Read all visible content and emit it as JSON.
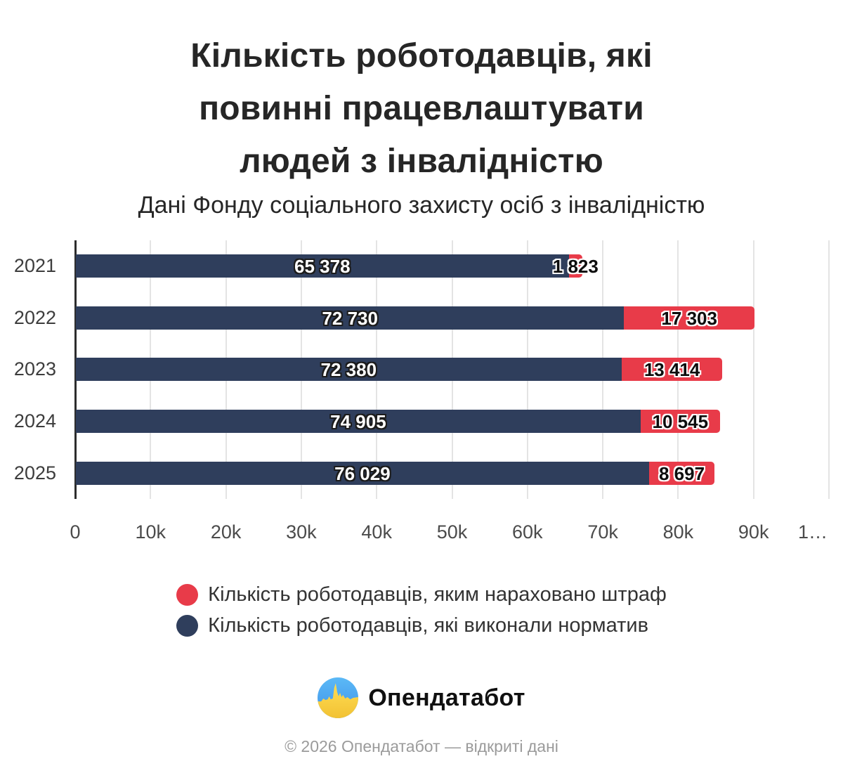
{
  "title": {
    "lines": [
      "Кількість роботодавців, які",
      "повинні працевлаштувати",
      "людей з інвалідністю"
    ],
    "subtitle": "Дані Фонду соціального захисту осіб з інвалідністю"
  },
  "chart_data": {
    "type": "bar",
    "orientation": "horizontal",
    "stacked": true,
    "categories": [
      "2021",
      "2022",
      "2023",
      "2024",
      "2025"
    ],
    "series": [
      {
        "name": "Кількість роботодавців, які виконали норматив",
        "color": "#2F3E5C",
        "values": [
          65378,
          72730,
          72380,
          74905,
          76029
        ],
        "labels": [
          "65 378",
          "72 730",
          "72 380",
          "74 905",
          "76 029"
        ]
      },
      {
        "name": "Кількість роботодавців, яким нараховано штраф",
        "color": "#E83B49",
        "values": [
          1823,
          17303,
          13414,
          10545,
          8697
        ],
        "labels": [
          "1 823",
          "17 303",
          "13 414",
          "10 545",
          "8 697"
        ]
      }
    ],
    "xlim": [
      0,
      100000
    ],
    "x_ticks": [
      "0",
      "10k",
      "20k",
      "30k",
      "40k",
      "50k",
      "60k",
      "70k",
      "80k",
      "90k",
      "1…"
    ],
    "grid": true,
    "legend_position": "bottom"
  },
  "legend": {
    "items": [
      {
        "label": "Кількість роботодавців, яким нараховано штраф",
        "color": "#E83B49"
      },
      {
        "label": "Кількість роботодавців, які виконали норматив",
        "color": "#2F3E5C"
      }
    ]
  },
  "colors": {
    "completed_bar": "#2F3E5C",
    "fined_bar": "#E83B49",
    "axis_line": "#2d2d2d",
    "gridline": "#e4e4e4"
  },
  "footer": {
    "brand": "Опендатабот",
    "copyright": "© 2026 Опендатабот — відкриті дані"
  }
}
